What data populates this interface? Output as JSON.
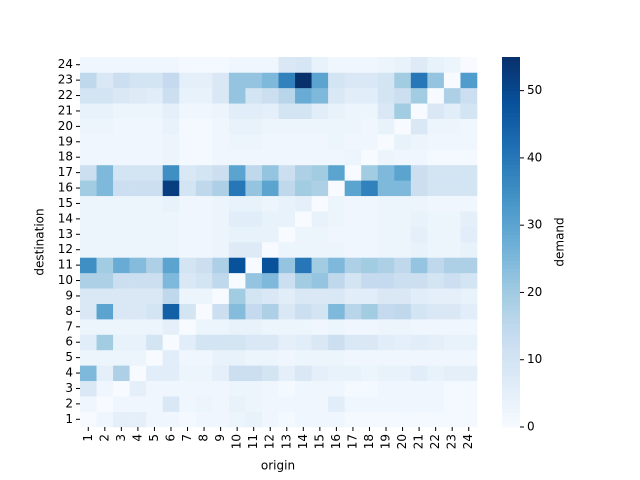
{
  "chart_data": {
    "type": "heatmap",
    "xlabel": "origin",
    "ylabel": "destination",
    "zlabel": "demand",
    "colormap": "Blues",
    "x": [
      "1",
      "2",
      "3",
      "4",
      "5",
      "6",
      "7",
      "8",
      "9",
      "10",
      "11",
      "12",
      "13",
      "14",
      "15",
      "16",
      "17",
      "18",
      "19",
      "20",
      "21",
      "22",
      "23",
      "24"
    ],
    "y": [
      "1",
      "2",
      "3",
      "4",
      "5",
      "6",
      "7",
      "8",
      "9",
      "10",
      "11",
      "12",
      "13",
      "14",
      "15",
      "16",
      "17",
      "18",
      "19",
      "20",
      "21",
      "22",
      "23",
      "24"
    ],
    "values": [
      [
        0,
        2,
        5,
        5,
        2,
        2,
        1,
        2,
        2,
        3,
        4,
        2,
        1,
        2,
        2,
        2,
        1,
        1,
        1,
        1,
        1,
        1,
        1,
        1
      ],
      [
        2,
        0,
        2,
        2,
        2,
        8,
        2,
        3,
        2,
        4,
        3,
        2,
        2,
        2,
        2,
        6,
        2,
        2,
        2,
        2,
        2,
        2,
        1,
        1
      ],
      [
        8,
        2,
        0,
        5,
        2,
        2,
        2,
        2,
        2,
        3,
        3,
        2,
        1,
        2,
        2,
        2,
        1,
        1,
        2,
        2,
        2,
        2,
        1,
        1
      ],
      [
        25,
        5,
        18,
        0,
        6,
        6,
        3,
        3,
        5,
        12,
        12,
        10,
        5,
        8,
        5,
        4,
        4,
        3,
        4,
        4,
        6,
        4,
        5,
        5
      ],
      [
        3,
        3,
        3,
        3,
        0,
        6,
        2,
        2,
        4,
        4,
        3,
        3,
        2,
        3,
        3,
        3,
        2,
        2,
        2,
        2,
        2,
        2,
        2,
        2
      ],
      [
        6,
        20,
        4,
        4,
        10,
        0,
        6,
        10,
        10,
        10,
        8,
        8,
        5,
        6,
        8,
        12,
        8,
        8,
        6,
        5,
        6,
        5,
        4,
        4
      ],
      [
        3,
        3,
        3,
        3,
        3,
        5,
        0,
        3,
        3,
        4,
        4,
        3,
        3,
        3,
        2,
        3,
        2,
        2,
        3,
        3,
        2,
        2,
        2,
        2
      ],
      [
        8,
        30,
        8,
        8,
        10,
        45,
        10,
        0,
        12,
        24,
        14,
        18,
        8,
        12,
        10,
        25,
        16,
        20,
        14,
        15,
        10,
        8,
        8,
        6
      ],
      [
        8,
        8,
        8,
        8,
        8,
        15,
        3,
        3,
        0,
        20,
        10,
        8,
        6,
        8,
        8,
        8,
        6,
        6,
        8,
        8,
        6,
        5,
        5,
        4
      ],
      [
        18,
        18,
        12,
        12,
        12,
        25,
        8,
        10,
        15,
        0,
        22,
        25,
        12,
        20,
        22,
        15,
        10,
        14,
        14,
        12,
        12,
        10,
        12,
        10
      ],
      [
        35,
        20,
        28,
        24,
        18,
        30,
        10,
        12,
        18,
        48,
        0,
        48,
        22,
        40,
        20,
        25,
        18,
        20,
        18,
        15,
        22,
        15,
        18,
        18
      ],
      [
        3,
        3,
        3,
        3,
        3,
        3,
        2,
        2,
        3,
        7,
        7,
        0,
        3,
        3,
        3,
        3,
        2,
        2,
        3,
        3,
        4,
        3,
        3,
        4
      ],
      [
        3,
        3,
        3,
        3,
        3,
        3,
        2,
        2,
        3,
        4,
        4,
        4,
        0,
        3,
        3,
        2,
        2,
        2,
        3,
        3,
        5,
        3,
        3,
        6
      ],
      [
        3,
        3,
        3,
        3,
        3,
        3,
        2,
        2,
        3,
        6,
        6,
        4,
        4,
        0,
        4,
        3,
        2,
        2,
        3,
        3,
        4,
        3,
        3,
        5
      ],
      [
        3,
        3,
        3,
        3,
        3,
        4,
        2,
        2,
        3,
        4,
        4,
        3,
        4,
        5,
        0,
        3,
        2,
        2,
        3,
        3,
        3,
        2,
        2,
        2
      ],
      [
        20,
        25,
        12,
        12,
        12,
        52,
        10,
        15,
        18,
        40,
        22,
        30,
        15,
        20,
        18,
        0,
        30,
        38,
        25,
        25,
        12,
        10,
        10,
        10
      ],
      [
        12,
        25,
        10,
        10,
        10,
        35,
        8,
        10,
        12,
        30,
        15,
        22,
        12,
        18,
        20,
        30,
        0,
        20,
        25,
        30,
        12,
        10,
        10,
        10
      ],
      [
        2,
        2,
        2,
        2,
        2,
        3,
        1,
        1,
        2,
        2,
        2,
        2,
        2,
        2,
        2,
        2,
        3,
        0,
        3,
        2,
        2,
        1,
        1,
        1
      ],
      [
        2,
        2,
        2,
        2,
        2,
        3,
        1,
        1,
        2,
        3,
        3,
        2,
        2,
        2,
        2,
        3,
        2,
        2,
        0,
        4,
        3,
        2,
        2,
        2
      ],
      [
        3,
        3,
        2,
        2,
        2,
        4,
        1,
        1,
        2,
        4,
        4,
        3,
        3,
        3,
        3,
        3,
        3,
        2,
        4,
        0,
        8,
        3,
        3,
        2
      ],
      [
        4,
        4,
        3,
        3,
        3,
        5,
        2,
        2,
        3,
        6,
        6,
        5,
        10,
        10,
        6,
        4,
        3,
        3,
        8,
        20,
        0,
        8,
        6,
        10
      ],
      [
        10,
        10,
        8,
        7,
        6,
        12,
        4,
        4,
        8,
        22,
        10,
        12,
        16,
        28,
        25,
        8,
        6,
        6,
        10,
        12,
        20,
        0,
        18,
        12
      ],
      [
        15,
        8,
        12,
        10,
        10,
        14,
        5,
        5,
        8,
        22,
        22,
        25,
        38,
        55,
        30,
        10,
        8,
        8,
        10,
        20,
        40,
        22,
        0,
        32
      ],
      [
        2,
        2,
        2,
        2,
        2,
        2,
        1,
        1,
        1,
        2,
        2,
        2,
        8,
        9,
        4,
        2,
        2,
        2,
        3,
        4,
        7,
        4,
        3,
        0
      ]
    ],
    "zlim": [
      0,
      55
    ],
    "zticks": [
      0,
      10,
      20,
      30,
      40,
      50
    ]
  }
}
